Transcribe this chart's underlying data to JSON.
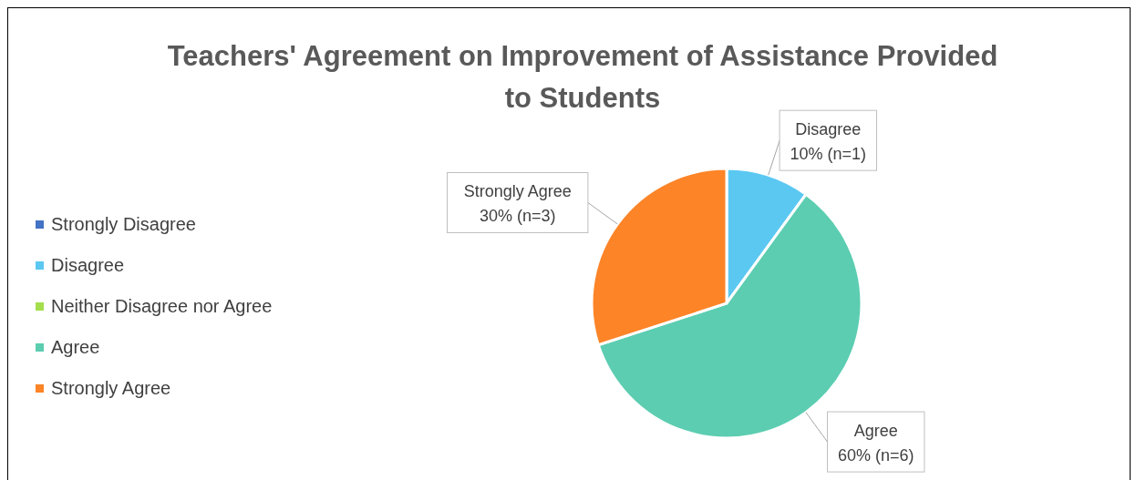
{
  "chart_data": {
    "type": "pie",
    "title": "Teachers' Agreement on Improvement of Assistance Provided to Students",
    "categories": [
      "Strongly Disagree",
      "Disagree",
      "Neither Disagree nor Agree",
      "Agree",
      "Strongly Agree"
    ],
    "values": [
      0,
      10,
      0,
      60,
      30
    ],
    "value_labels": [
      null,
      "10% (n=1)",
      null,
      "60% (n=6)",
      "30% (n=3)"
    ],
    "colors": [
      "#4472c4",
      "#5bc8f2",
      "#a4de4c",
      "#5ccdb1",
      "#fd8427"
    ],
    "legend": "left"
  }
}
